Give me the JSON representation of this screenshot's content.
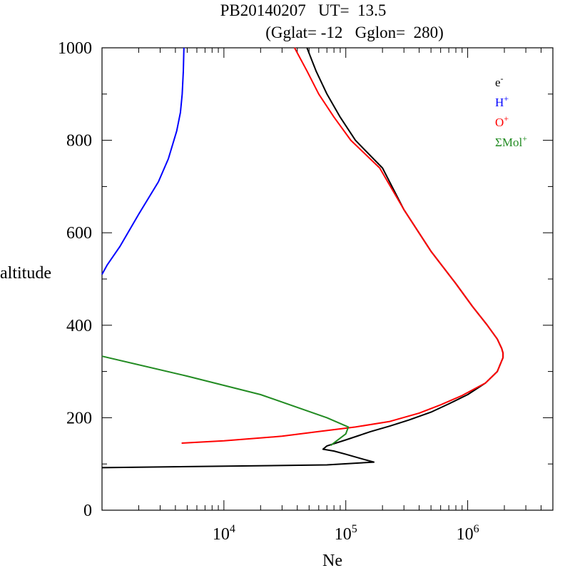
{
  "chart_data": {
    "type": "line",
    "title": "PB20140207   UT=  13.5",
    "subtitle": "(Gglat= -12   Gglon=  280)",
    "xlabel": "Ne",
    "ylabel": "altitude",
    "x_scale": "log",
    "xlim": [
      1000,
      5000000
    ],
    "ylim": [
      0,
      1000
    ],
    "x_major_ticks": [
      {
        "value": 10000,
        "base": "10",
        "exp": "4"
      },
      {
        "value": 100000,
        "base": "10",
        "exp": "5"
      },
      {
        "value": 1000000,
        "base": "10",
        "exp": "6"
      }
    ],
    "y_ticks": [
      0,
      200,
      400,
      600,
      800,
      1000
    ],
    "legend_position": "top-right",
    "grid": false,
    "series": [
      {
        "name": "e-",
        "label_base": "e",
        "label_sup": "-",
        "color": "#000000",
        "points": [
          [
            1000,
            92
          ],
          [
            70000,
            98
          ],
          [
            170000,
            104
          ],
          [
            140000,
            110
          ],
          [
            100000,
            121
          ],
          [
            80000,
            128
          ],
          [
            65000,
            132
          ],
          [
            70000,
            139
          ],
          [
            100000,
            152
          ],
          [
            130000,
            162
          ],
          [
            160000,
            170
          ],
          [
            230000,
            182
          ],
          [
            330000,
            195
          ],
          [
            500000,
            212
          ],
          [
            700000,
            230
          ],
          [
            1000000,
            250
          ],
          [
            1400000,
            275
          ],
          [
            1750000,
            300
          ],
          [
            1950000,
            330
          ],
          [
            1950000,
            340
          ],
          [
            1900000,
            350
          ],
          [
            1750000,
            370
          ],
          [
            1450000,
            400
          ],
          [
            1100000,
            440
          ],
          [
            800000,
            490
          ],
          [
            500000,
            560
          ],
          [
            300000,
            650
          ],
          [
            200000,
            740
          ],
          [
            120000,
            800
          ],
          [
            90000,
            850
          ],
          [
            70000,
            900
          ],
          [
            57000,
            950
          ],
          [
            48000,
            1000
          ]
        ]
      },
      {
        "name": "H+",
        "label_base": "H",
        "label_sup": "+",
        "color": "#0000ff",
        "points": [
          [
            1000,
            510
          ],
          [
            1100,
            530
          ],
          [
            1400,
            570
          ],
          [
            2000,
            640
          ],
          [
            2900,
            710
          ],
          [
            3500,
            760
          ],
          [
            4100,
            820
          ],
          [
            4400,
            860
          ],
          [
            4550,
            900
          ],
          [
            4650,
            950
          ],
          [
            4700,
            1000
          ]
        ]
      },
      {
        "name": "O+",
        "label_base": "O",
        "label_sup": "+",
        "color": "#ff0000",
        "points": [
          [
            4500,
            145
          ],
          [
            10000,
            150
          ],
          [
            30000,
            160
          ],
          [
            60000,
            170
          ],
          [
            120000,
            180
          ],
          [
            230000,
            192
          ],
          [
            400000,
            210
          ],
          [
            600000,
            228
          ],
          [
            900000,
            248
          ],
          [
            1400000,
            275
          ],
          [
            1750000,
            300
          ],
          [
            1950000,
            330
          ],
          [
            1950000,
            340
          ],
          [
            1900000,
            350
          ],
          [
            1750000,
            370
          ],
          [
            1450000,
            400
          ],
          [
            1100000,
            440
          ],
          [
            800000,
            490
          ],
          [
            500000,
            560
          ],
          [
            300000,
            650
          ],
          [
            190000,
            740
          ],
          [
            110000,
            800
          ],
          [
            80000,
            850
          ],
          [
            60000,
            900
          ],
          [
            48000,
            950
          ],
          [
            38000,
            1000
          ]
        ]
      },
      {
        "name": "ΣMol+",
        "label_base": "ΣMol",
        "label_sup": "+",
        "color": "#228b22",
        "points": [
          [
            75000,
            140
          ],
          [
            100000,
            165
          ],
          [
            105000,
            180
          ],
          [
            70000,
            200
          ],
          [
            20000,
            250
          ],
          [
            5000,
            290
          ],
          [
            1000,
            333
          ]
        ]
      }
    ]
  }
}
